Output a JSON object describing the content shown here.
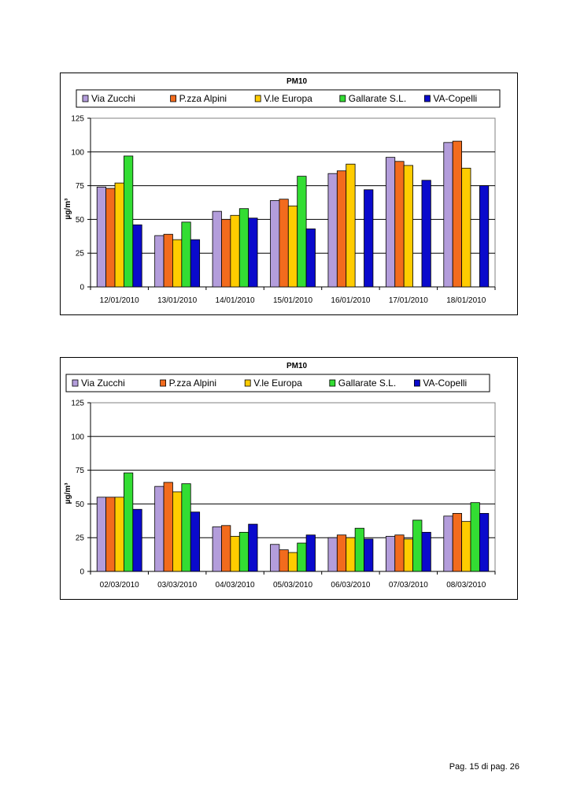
{
  "chart_data": [
    {
      "type": "bar",
      "title": "PM10",
      "ylabel": "µg/m³",
      "xlabel": "",
      "ylim": [
        0,
        125
      ],
      "yticks": [
        0,
        25,
        50,
        75,
        100,
        125
      ],
      "reference_line": 75,
      "legend_position": "top",
      "categories": [
        "12/01/2010",
        "13/01/2010",
        "14/01/2010",
        "15/01/2010",
        "16/01/2010",
        "17/01/2010",
        "18/01/2010"
      ],
      "series": [
        {
          "name": "Via Zucchi",
          "color": "#b39ddb",
          "values": [
            74,
            38,
            56,
            64,
            84,
            96,
            107
          ]
        },
        {
          "name": "P.zza Alpini",
          "color": "#f26b1d",
          "values": [
            73,
            39,
            50,
            65,
            86,
            93,
            108
          ]
        },
        {
          "name": "V.le Europa",
          "color": "#ffcc00",
          "values": [
            77,
            35,
            53,
            60,
            91,
            90,
            88
          ]
        },
        {
          "name": "Gallarate S.L.",
          "color": "#33dd33",
          "values": [
            97,
            48,
            58,
            82,
            null,
            null,
            null
          ]
        },
        {
          "name": "VA-Copelli",
          "color": "#0a0acc",
          "values": [
            46,
            35,
            51,
            43,
            72,
            79,
            75
          ]
        }
      ]
    },
    {
      "type": "bar",
      "title": "PM10",
      "ylabel": "µg/m³",
      "xlabel": "",
      "ylim": [
        0,
        125
      ],
      "yticks": [
        0,
        25,
        50,
        75,
        100,
        125
      ],
      "reference_line": 75,
      "legend_position": "top",
      "categories": [
        "02/03/2010",
        "03/03/2010",
        "04/03/2010",
        "05/03/2010",
        "06/03/2010",
        "07/03/2010",
        "08/03/2010"
      ],
      "series": [
        {
          "name": "Via Zucchi",
          "color": "#b39ddb",
          "values": [
            55,
            63,
            33,
            20,
            25,
            26,
            41
          ]
        },
        {
          "name": "P.zza Alpini",
          "color": "#f26b1d",
          "values": [
            55,
            66,
            34,
            16,
            27,
            27,
            43
          ]
        },
        {
          "name": "V.le Europa",
          "color": "#ffcc00",
          "values": [
            55,
            59,
            26,
            14,
            25,
            24,
            37
          ]
        },
        {
          "name": "Gallarate S.L.",
          "color": "#33dd33",
          "values": [
            73,
            65,
            29,
            21,
            32,
            38,
            51
          ]
        },
        {
          "name": "VA-Copelli",
          "color": "#0a0acc",
          "values": [
            46,
            44,
            35,
            27,
            24,
            29,
            43
          ]
        }
      ]
    }
  ],
  "footer": {
    "text": "Pag. 15 di pag. 26"
  }
}
